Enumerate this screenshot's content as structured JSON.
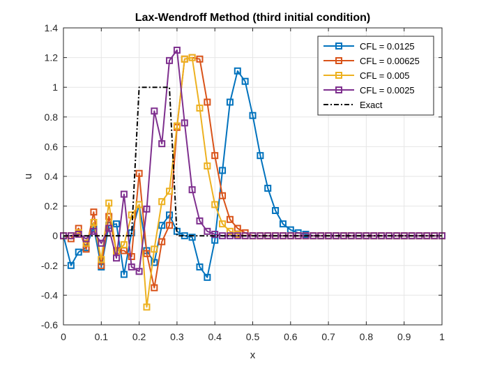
{
  "chart_data": {
    "type": "line",
    "title": "Lax-Wendroff Method (third initial condition)",
    "xlabel": "x",
    "ylabel": "u",
    "xlim": [
      0,
      1
    ],
    "ylim": [
      -0.6,
      1.4
    ],
    "xticks": [
      "0",
      "0.1",
      "0.2",
      "0.3",
      "0.4",
      "0.5",
      "0.6",
      "0.7",
      "0.8",
      "0.9",
      "1"
    ],
    "yticks": [
      "-0.6",
      "-0.4",
      "-0.2",
      "0",
      "0.2",
      "0.4",
      "0.6",
      "0.8",
      "1",
      "1.2",
      "1.4"
    ],
    "grid": true,
    "legend_position": "top-right",
    "series": [
      {
        "name": "CFL = 0.0125",
        "color": "#0072BD",
        "marker": "square",
        "x": [
          0,
          0.02,
          0.04,
          0.06,
          0.08,
          0.1,
          0.12,
          0.14,
          0.16,
          0.18,
          0.2,
          0.22,
          0.24,
          0.26,
          0.28,
          0.3,
          0.32,
          0.34,
          0.36,
          0.38,
          0.4,
          0.42,
          0.44,
          0.46,
          0.48,
          0.5,
          0.52,
          0.54,
          0.56,
          0.58,
          0.6,
          0.62,
          0.64,
          0.66,
          0.68,
          0.7,
          0.72,
          0.74,
          0.76,
          0.78,
          0.8,
          0.82,
          0.84,
          0.86,
          0.88,
          0.9,
          0.92,
          0.94,
          0.96,
          0.98,
          1.0
        ],
        "y": [
          0,
          -0.2,
          -0.11,
          -0.08,
          0.06,
          -0.21,
          0.07,
          0.08,
          -0.26,
          0.02,
          0.21,
          -0.1,
          -0.18,
          0.07,
          0.14,
          0.03,
          0,
          -0.01,
          -0.21,
          -0.28,
          -0.03,
          0.44,
          0.9,
          1.11,
          1.04,
          0.81,
          0.54,
          0.32,
          0.17,
          0.08,
          0.04,
          0.02,
          0.01,
          0,
          0,
          0,
          0,
          0,
          0,
          0,
          0,
          0,
          0,
          0,
          0,
          0,
          0,
          0,
          0,
          0,
          0
        ]
      },
      {
        "name": "CFL = 0.00625",
        "color": "#D95319",
        "marker": "square",
        "x": [
          0,
          0.02,
          0.04,
          0.06,
          0.08,
          0.1,
          0.12,
          0.14,
          0.16,
          0.18,
          0.2,
          0.22,
          0.24,
          0.26,
          0.28,
          0.3,
          0.32,
          0.34,
          0.36,
          0.38,
          0.4,
          0.42,
          0.44,
          0.46,
          0.48,
          0.5,
          0.52,
          0.54,
          0.56,
          0.58,
          0.6,
          0.62,
          0.64,
          0.66,
          0.68,
          0.7,
          0.72,
          0.74,
          0.76,
          0.78,
          0.8,
          0.82,
          0.84,
          0.86,
          0.88,
          0.9,
          0.92,
          0.94,
          0.96,
          0.98,
          1.0
        ],
        "y": [
          0,
          -0.02,
          0.05,
          -0.09,
          0.16,
          -0.2,
          0.13,
          -0.1,
          -0.1,
          -0.14,
          0.42,
          -0.12,
          -0.35,
          -0.04,
          0.07,
          0.73,
          1.19,
          1.2,
          1.19,
          0.9,
          0.54,
          0.27,
          0.11,
          0.05,
          0.02,
          0,
          0,
          0,
          0,
          0,
          0,
          0,
          0,
          0,
          0,
          0,
          0,
          0,
          0,
          0,
          0,
          0,
          0,
          0,
          0,
          0,
          0,
          0,
          0,
          0,
          0
        ]
      },
      {
        "name": "CFL = 0.005",
        "color": "#EDB120",
        "marker": "square",
        "x": [
          0,
          0.02,
          0.04,
          0.06,
          0.08,
          0.1,
          0.12,
          0.14,
          0.16,
          0.18,
          0.2,
          0.22,
          0.24,
          0.26,
          0.28,
          0.3,
          0.32,
          0.34,
          0.36,
          0.38,
          0.4,
          0.42,
          0.44,
          0.46,
          0.48,
          0.5,
          0.52,
          0.54,
          0.56,
          0.58,
          0.6,
          0.62,
          0.64,
          0.66,
          0.68,
          0.7,
          0.72,
          0.74,
          0.76,
          0.78,
          0.8,
          0.82,
          0.84,
          0.86,
          0.88,
          0.9,
          0.92,
          0.94,
          0.96,
          0.98,
          1.0
        ],
        "y": [
          0,
          0,
          0.02,
          -0.05,
          0.09,
          -0.16,
          0.22,
          -0.11,
          -0.06,
          0.14,
          0.21,
          -0.48,
          -0.09,
          0.23,
          0.3,
          0.74,
          1.19,
          1.2,
          0.86,
          0.47,
          0.21,
          0.08,
          0.03,
          0.01,
          0,
          0,
          0,
          0,
          0,
          0,
          0,
          0,
          0,
          0,
          0,
          0,
          0,
          0,
          0,
          0,
          0,
          0,
          0,
          0,
          0,
          0,
          0,
          0,
          0,
          0,
          0
        ]
      },
      {
        "name": "CFL = 0.0025",
        "color": "#7E2F8E",
        "marker": "square",
        "x": [
          0,
          0.02,
          0.04,
          0.06,
          0.08,
          0.1,
          0.12,
          0.14,
          0.16,
          0.18,
          0.2,
          0.22,
          0.24,
          0.26,
          0.28,
          0.3,
          0.32,
          0.34,
          0.36,
          0.38,
          0.4,
          0.42,
          0.44,
          0.46,
          0.48,
          0.5,
          0.52,
          0.54,
          0.56,
          0.58,
          0.6,
          0.62,
          0.64,
          0.66,
          0.68,
          0.7,
          0.72,
          0.74,
          0.76,
          0.78,
          0.8,
          0.82,
          0.84,
          0.86,
          0.88,
          0.9,
          0.92,
          0.94,
          0.96,
          0.98,
          1.0
        ],
        "y": [
          0,
          0,
          0.01,
          -0.02,
          0.03,
          -0.05,
          0.05,
          -0.15,
          0.28,
          -0.21,
          -0.24,
          0.18,
          0.84,
          0.62,
          1.18,
          1.25,
          0.76,
          0.31,
          0.1,
          0.03,
          0.01,
          0,
          0,
          0,
          0,
          0,
          0,
          0,
          0,
          0,
          0,
          0,
          0,
          0,
          0,
          0,
          0,
          0,
          0,
          0,
          0,
          0,
          0,
          0,
          0,
          0,
          0,
          0,
          0,
          0,
          0
        ]
      },
      {
        "name": "Exact",
        "color": "#000000",
        "marker": "none",
        "dash": "dashdot",
        "x": [
          0,
          0.18,
          0.2,
          0.28,
          0.3,
          1.0
        ],
        "y": [
          0,
          0,
          1,
          1,
          0,
          0
        ]
      }
    ]
  }
}
